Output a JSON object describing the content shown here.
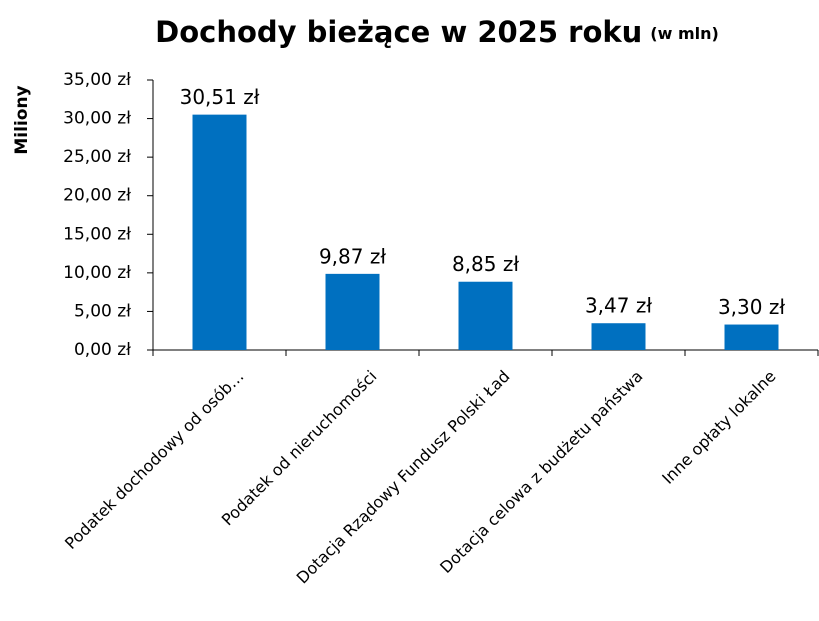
{
  "chart_data": {
    "type": "bar",
    "title": "Dochody bieżące w 2025 roku",
    "subtitle": "(w mln)",
    "y_label": "Miliony",
    "categories": [
      "Podatek dochodowy od osób…",
      "Podatek od nieruchomości",
      "Dotacja Rządowy Fundusz Polski Ład",
      "Dotacja celowa z budżetu państwa",
      "Inne opłaty lokalne"
    ],
    "values": [
      30.51,
      9.87,
      8.85,
      3.47,
      3.3
    ],
    "value_labels": [
      "30,51 zł",
      "9,87 zł",
      "8,85 zł",
      "3,47 zł",
      "3,30 zł"
    ],
    "color": "#0070c0",
    "ylim": [
      0,
      35
    ],
    "yticks": [
      {
        "value": 0,
        "label": "0,00 zł"
      },
      {
        "value": 5,
        "label": "5,00 zł"
      },
      {
        "value": 10,
        "label": "10,00 zł"
      },
      {
        "value": 15,
        "label": "15,00 zł"
      },
      {
        "value": 20,
        "label": "20,00 zł"
      },
      {
        "value": 25,
        "label": "25,00 zł"
      },
      {
        "value": 30,
        "label": "30,00 zł"
      },
      {
        "value": 35,
        "label": "35,00 zł"
      }
    ],
    "grid": false
  }
}
